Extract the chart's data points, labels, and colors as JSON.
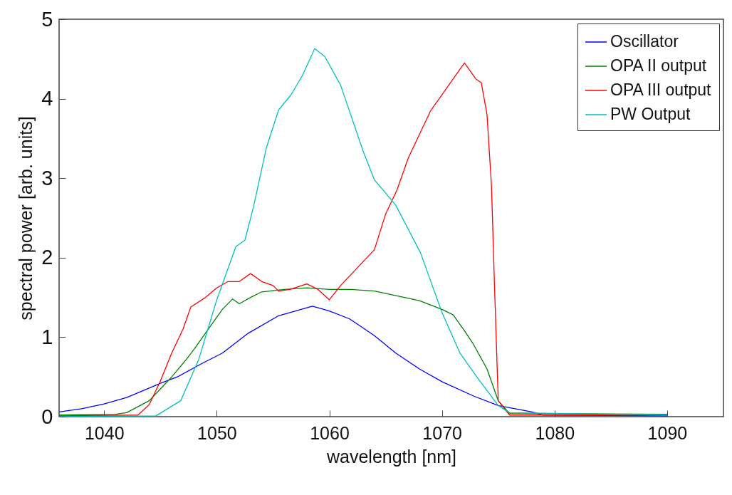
{
  "chart_data": {
    "type": "line",
    "xlabel": "wavelength [nm]",
    "ylabel": "spectral power [arb. units]",
    "xlim": [
      1036,
      1095
    ],
    "xticks": [
      1040,
      1050,
      1060,
      1070,
      1080,
      1090
    ],
    "ylim": [
      0,
      5
    ],
    "yticks": [
      0,
      1,
      2,
      3,
      4,
      5
    ],
    "grid": false,
    "legend": "top right",
    "line_style": "solid",
    "marker": "none",
    "series": [
      {
        "name": "Oscillator",
        "color": "#0000ff",
        "x": [
          1036,
          1038,
          1040,
          1042,
          1044,
          1045,
          1046.5,
          1048.7,
          1050.5,
          1052.8,
          1055.5,
          1058.5,
          1060,
          1061.8,
          1064,
          1065.9,
          1068,
          1070,
          1072.8,
          1075,
          1078,
          1079,
          1090
        ],
        "values": [
          0.06,
          0.1,
          0.16,
          0.24,
          0.36,
          0.42,
          0.5,
          0.67,
          0.8,
          1.05,
          1.27,
          1.39,
          1.33,
          1.23,
          1.02,
          0.8,
          0.6,
          0.44,
          0.26,
          0.14,
          0.06,
          0.02,
          0.01
        ]
      },
      {
        "name": "OPA II output",
        "color": "#008000",
        "x": [
          1036,
          1041,
          1042,
          1044,
          1045,
          1046,
          1047.3,
          1048,
          1049.5,
          1050.5,
          1051.4,
          1052,
          1053,
          1054,
          1056,
          1058,
          1060,
          1062,
          1064,
          1066,
          1068,
          1070,
          1071,
          1072,
          1072.8,
          1074,
          1075,
          1075.5,
          1076,
          1090
        ],
        "values": [
          0.02,
          0.03,
          0.05,
          0.2,
          0.35,
          0.5,
          0.72,
          0.85,
          1.15,
          1.35,
          1.48,
          1.42,
          1.5,
          1.57,
          1.6,
          1.62,
          1.6,
          1.6,
          1.58,
          1.52,
          1.46,
          1.35,
          1.28,
          1.08,
          0.91,
          0.6,
          0.2,
          0.12,
          0.04,
          0.03
        ]
      },
      {
        "name": "OPA III output",
        "color": "#ff0000",
        "x": [
          1036,
          1043,
          1044,
          1045,
          1046,
          1047,
          1047.7,
          1049,
          1050,
          1051,
          1052,
          1053,
          1054,
          1055,
          1055.5,
          1056.5,
          1058,
          1059,
          1060,
          1061,
          1062,
          1063,
          1064,
          1065,
          1066,
          1067,
          1068,
          1069,
          1070,
          1071,
          1072,
          1073,
          1073.5,
          1074,
          1074.4,
          1074.7,
          1075,
          1076,
          1090
        ],
        "values": [
          0.01,
          0.02,
          0.15,
          0.45,
          0.8,
          1.1,
          1.38,
          1.5,
          1.62,
          1.7,
          1.7,
          1.8,
          1.7,
          1.65,
          1.58,
          1.6,
          1.67,
          1.6,
          1.47,
          1.65,
          1.8,
          1.95,
          2.1,
          2.55,
          2.85,
          3.25,
          3.55,
          3.85,
          4.05,
          4.25,
          4.45,
          4.25,
          4.2,
          3.8,
          2.9,
          1.5,
          0.2,
          0.02,
          0.02
        ]
      },
      {
        "name": "PW Output",
        "color": "#00bfbf",
        "x": [
          1036,
          1044.6,
          1046.8,
          1048.4,
          1050,
          1051.7,
          1052.5,
          1053.3,
          1054.4,
          1055.5,
          1056.6,
          1057.6,
          1058.7,
          1059.6,
          1061,
          1063,
          1064,
          1065.9,
          1068.1,
          1070,
          1071.6,
          1073.2,
          1075,
          1076,
          1090
        ],
        "values": [
          0.0,
          0.01,
          0.2,
          0.72,
          1.47,
          2.14,
          2.22,
          2.66,
          3.38,
          3.86,
          4.05,
          4.29,
          4.63,
          4.53,
          4.17,
          3.34,
          2.98,
          2.66,
          2.06,
          1.31,
          0.8,
          0.48,
          0.14,
          0.05,
          0.02
        ]
      }
    ]
  }
}
